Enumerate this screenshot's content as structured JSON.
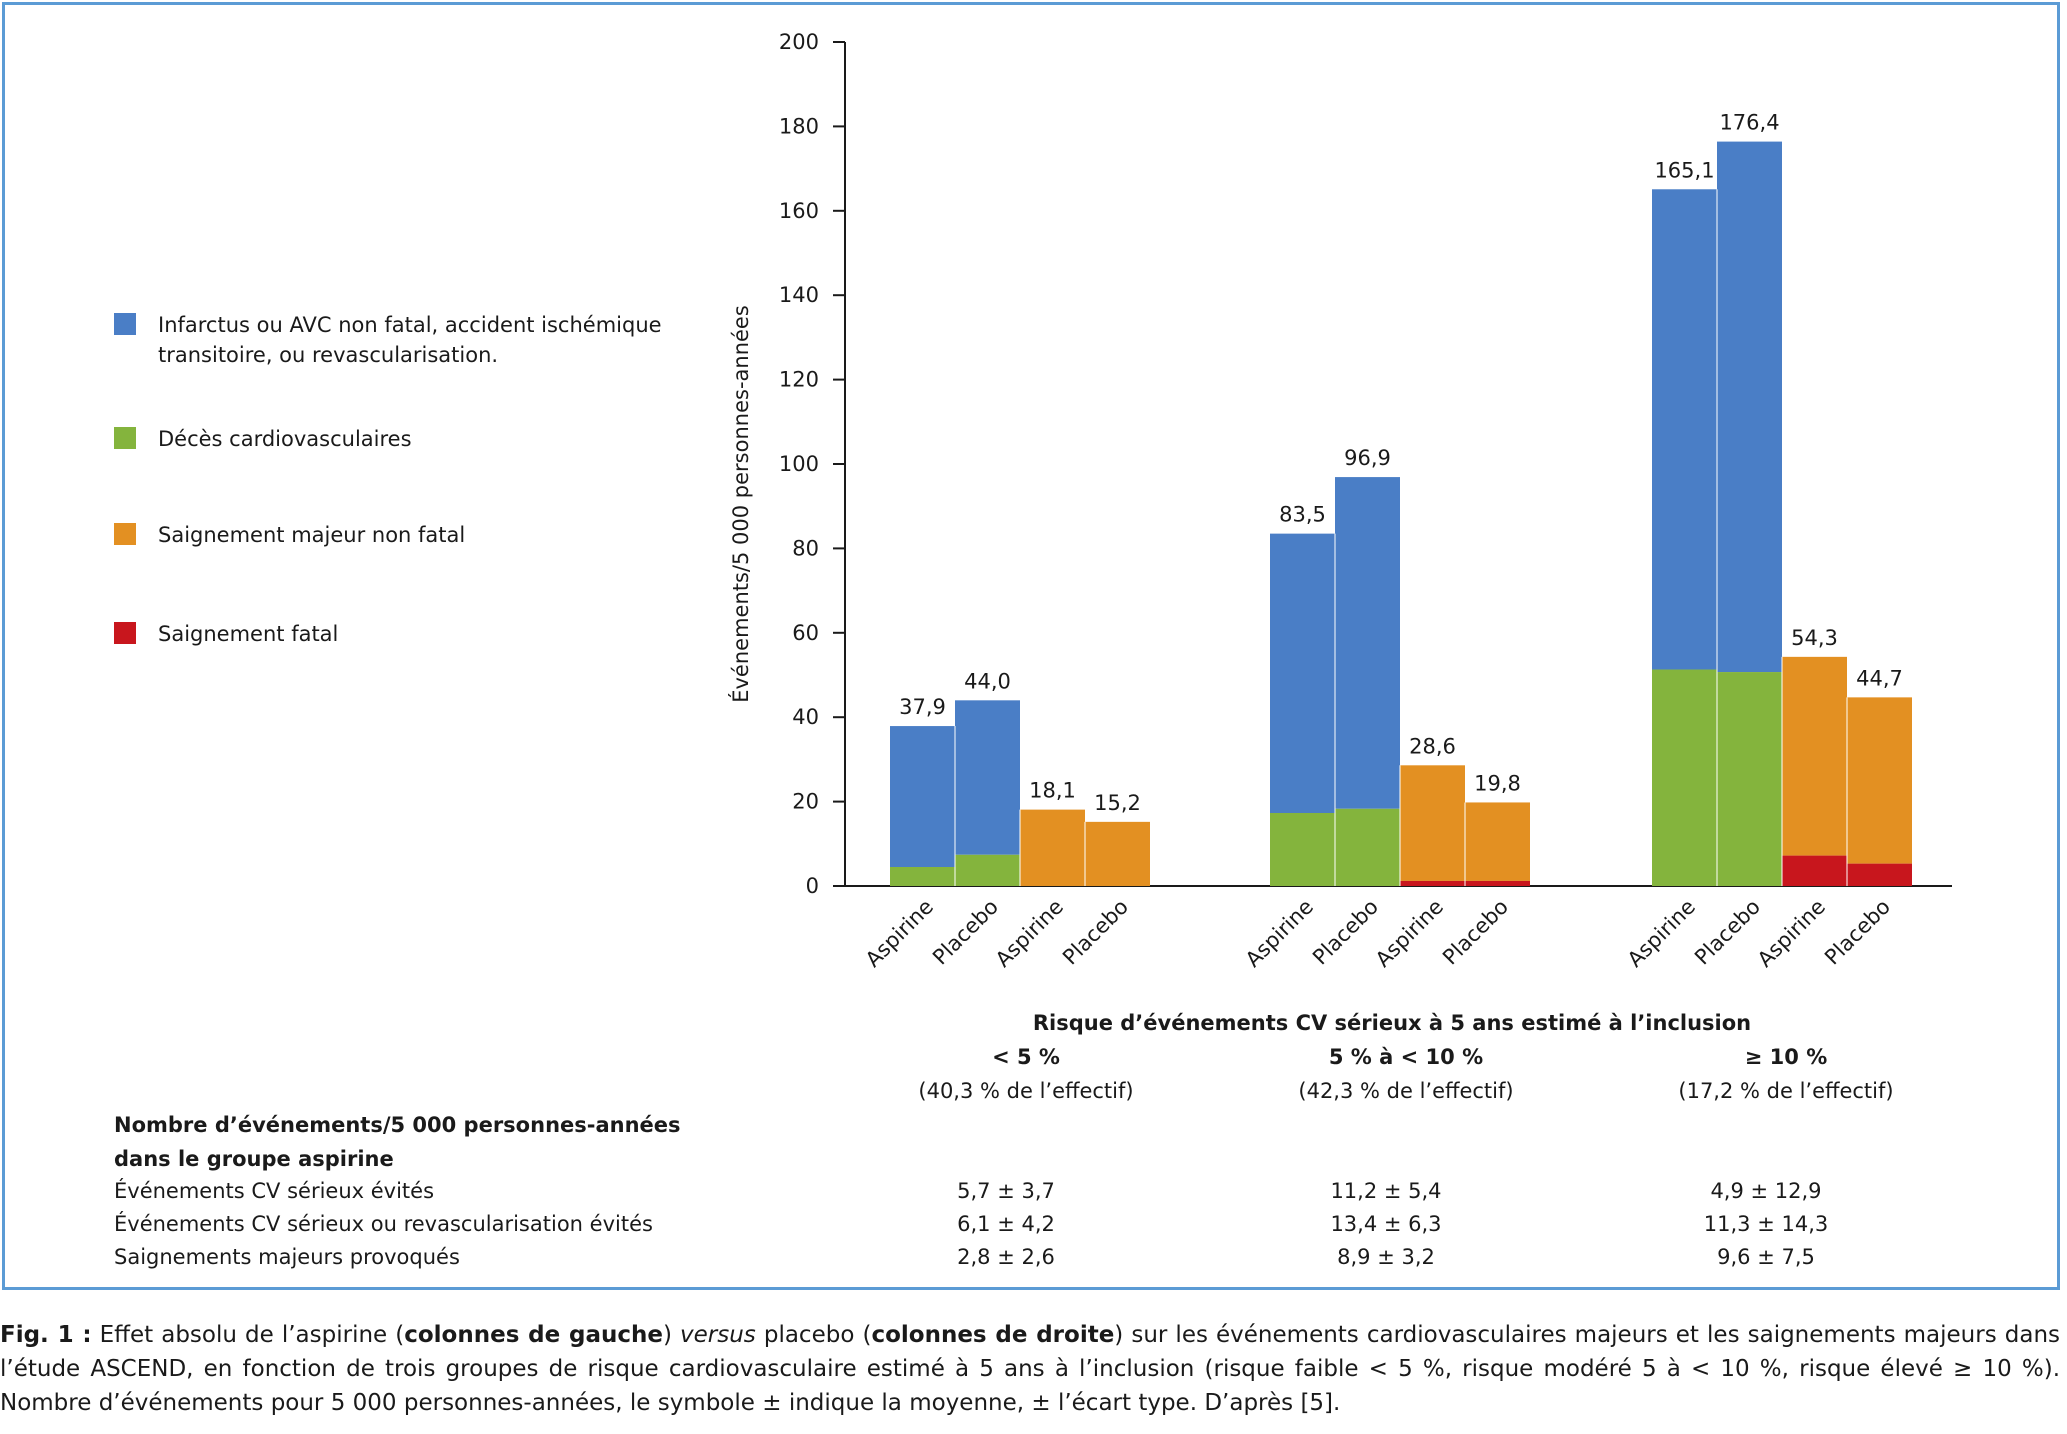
{
  "chart_data": {
    "type": "bar",
    "stacked": true,
    "ylabel": "Événements/5 000 personnes-années",
    "xlabel": "Risque d’événements CV sérieux à 5 ans estimé à l’inclusion",
    "ylim": [
      0,
      200
    ],
    "yticks": [
      0,
      20,
      40,
      60,
      80,
      100,
      120,
      140,
      160,
      180,
      200
    ],
    "legend_position": "left",
    "series": [
      {
        "name": "Infarctus ou AVC non fatal, accident ischémique transitoire, ou revascularisation.",
        "color": "#4a7ec6"
      },
      {
        "name": "Décès cardiovasculaires",
        "color": "#84b43d"
      },
      {
        "name": "Saignement majeur non fatal",
        "color": "#e39022"
      },
      {
        "name": "Saignement fatal",
        "color": "#c8161d"
      }
    ],
    "groups": [
      {
        "name": "< 5 %",
        "share": "(40,3 % de l’effectif)",
        "bars": [
          {
            "category": "Aspirine",
            "type": "cv",
            "total": 37.9,
            "total_label": "37,9",
            "bottom": 4.5
          },
          {
            "category": "Placebo",
            "type": "cv",
            "total": 44.0,
            "total_label": "44,0",
            "bottom": 7.4
          },
          {
            "category": "Aspirine",
            "type": "bleed",
            "total": 18.1,
            "total_label": "18,1",
            "bottom": 0
          },
          {
            "category": "Placebo",
            "type": "bleed",
            "total": 15.2,
            "total_label": "15,2",
            "bottom": 0
          }
        ]
      },
      {
        "name": "5 % à < 10 %",
        "share": "(42,3 % de l’effectif)",
        "bars": [
          {
            "category": "Aspirine",
            "type": "cv",
            "total": 83.5,
            "total_label": "83,5",
            "bottom": 17.3
          },
          {
            "category": "Placebo",
            "type": "cv",
            "total": 96.9,
            "total_label": "96,9",
            "bottom": 18.3
          },
          {
            "category": "Aspirine",
            "type": "bleed",
            "total": 28.6,
            "total_label": "28,6",
            "bottom": 1.2
          },
          {
            "category": "Placebo",
            "type": "bleed",
            "total": 19.8,
            "total_label": "19,8",
            "bottom": 1.2
          }
        ]
      },
      {
        "name": "≥ 10 %",
        "share": "(17,2 % de l’effectif)",
        "bars": [
          {
            "category": "Aspirine",
            "type": "cv",
            "total": 165.1,
            "total_label": "165,1",
            "bottom": 51.3
          },
          {
            "category": "Placebo",
            "type": "cv",
            "total": 176.4,
            "total_label": "176,4",
            "bottom": 50.7
          },
          {
            "category": "Aspirine",
            "type": "bleed",
            "total": 54.3,
            "total_label": "54,3",
            "bottom": 7.2
          },
          {
            "category": "Placebo",
            "type": "bleed",
            "total": 44.7,
            "total_label": "44,7",
            "bottom": 5.3
          }
        ]
      }
    ]
  },
  "table": {
    "title_line1": "Nombre d’événements/5 000 personnes-années",
    "title_line2": "dans le groupe aspirine",
    "rows": [
      {
        "label": "Événements CV sérieux évités",
        "values": [
          "5,7 ± 3,7",
          "11,2 ± 5,4",
          "4,9 ± 12,9"
        ]
      },
      {
        "label": "Événements CV sérieux ou revascularisation évités",
        "values": [
          "6,1 ± 4,2",
          "13,4 ± 6,3",
          "11,3 ± 14,3"
        ]
      },
      {
        "label": "Saignements majeurs provoqués",
        "values": [
          "2,8 ± 2,6",
          "8,9 ± 3,2",
          "9,6 ± 7,5"
        ]
      }
    ]
  },
  "caption": {
    "fig": "Fig. 1 :",
    "t1": " Effet absolu de l’aspirine (",
    "b1": "colonnes de gauche",
    "t2": ") ",
    "i1": "versus",
    "t3": " placebo (",
    "b2": "colonnes de droite",
    "t4": ") sur les événements cardiovasculaires majeurs et les saignements majeurs dans l’étude ASCEND, en fonction de trois groupes de risque cardiovasculaire estimé à 5 ans à l’inclusion (risque faible < 5 %, risque modéré 5 à < 10 %, risque élevé ≥ 10 %). Nombre d’événements pour 5 000 personnes-années, le symbole ± indique la moyenne, ± l’écart type. D’après [5]."
  }
}
